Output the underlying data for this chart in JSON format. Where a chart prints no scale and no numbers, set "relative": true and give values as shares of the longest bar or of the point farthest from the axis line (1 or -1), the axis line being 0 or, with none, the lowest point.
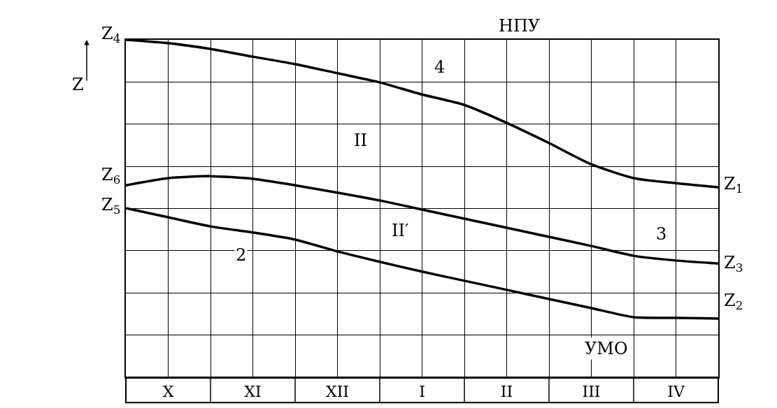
{
  "chart_data": {
    "type": "line",
    "relative": true,
    "ylabel": "Z",
    "categories": [
      null,
      "X",
      null,
      "XI",
      null,
      "XII",
      null,
      "I",
      null,
      "II",
      null,
      "III",
      null,
      "IV",
      null
    ],
    "series": [
      {
        "color": "#000000",
        "values": [
          1.0,
          0.99,
          0.973,
          0.95,
          0.928,
          0.901,
          0.874,
          0.838,
          0.807,
          0.754,
          0.694,
          0.631,
          0.59,
          0.575,
          0.563
        ]
      },
      {
        "color": "#000000",
        "values": [
          0.569,
          0.59,
          0.596,
          0.588,
          0.569,
          0.547,
          0.524,
          0.497,
          0.47,
          0.443,
          0.416,
          0.389,
          0.36,
          0.346,
          0.337
        ]
      },
      {
        "color": "#000000",
        "values": [
          0.501,
          0.474,
          0.447,
          0.429,
          0.408,
          0.373,
          0.342,
          0.313,
          0.286,
          0.259,
          0.232,
          0.205,
          0.178,
          0.176,
          0.174
        ]
      }
    ],
    "annotations": [
      "НПУ",
      "УМО",
      "Z$_{4}$",
      "Z$_{6}$",
      "Z$_{5}$",
      "Z$_{1}$",
      "Z$_{3}$",
      "Z$_{2}$",
      "4",
      "II",
      "II′",
      "2",
      "3"
    ],
    "grid": true,
    "marker": "none",
    "line_style": "solid"
  }
}
